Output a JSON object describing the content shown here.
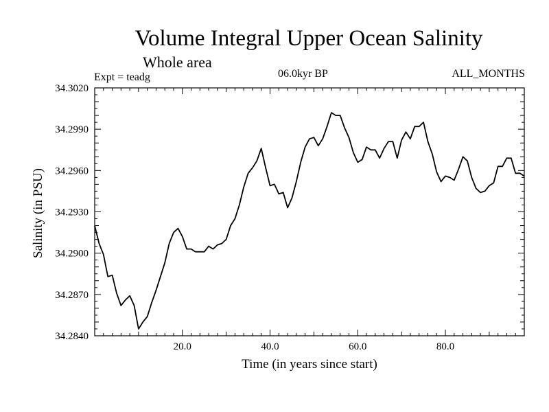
{
  "chart_data": {
    "type": "line",
    "title": "Volume Integral Upper Ocean Salinity",
    "subtitle": "Whole area",
    "experiment_label": "Expt = teadg",
    "period_label": "06.0kyr BP",
    "months_label": "ALL_MONTHS",
    "xlabel": "Time (in years since start)",
    "ylabel": "Salinity (in PSU)",
    "xlim": [
      0,
      98
    ],
    "ylim": [
      34.284,
      34.302
    ],
    "x_ticks": [
      20,
      40,
      60,
      80
    ],
    "x_tick_labels": [
      "20.0",
      "40.0",
      "60.0",
      "80.0"
    ],
    "y_ticks": [
      34.284,
      34.287,
      34.29,
      34.293,
      34.296,
      34.299,
      34.302
    ],
    "y_tick_labels": [
      "34.2840",
      "34.2870",
      "34.2900",
      "34.2930",
      "34.2960",
      "34.2990",
      "34.3020"
    ],
    "series": [
      {
        "name": "salinity",
        "x": [
          0,
          1,
          2,
          3,
          4,
          5,
          6,
          7,
          8,
          9,
          10,
          11,
          12,
          13,
          14,
          15,
          16,
          17,
          18,
          19,
          20,
          21,
          22,
          23,
          24,
          25,
          26,
          27,
          28,
          29,
          30,
          31,
          32,
          33,
          34,
          35,
          36,
          37,
          38,
          39,
          40,
          41,
          42,
          43,
          44,
          45,
          46,
          47,
          48,
          49,
          50,
          51,
          52,
          53,
          54,
          55,
          56,
          57,
          58,
          59,
          60,
          61,
          62,
          63,
          64,
          65,
          66,
          67,
          68,
          69,
          70,
          71,
          72,
          73,
          74,
          75,
          76,
          77,
          78,
          79,
          80,
          81,
          82,
          83,
          84,
          85,
          86,
          87,
          88,
          89,
          90,
          91,
          92,
          93,
          94,
          95,
          96,
          97,
          98
        ],
        "values": [
          34.292,
          34.2907,
          34.2899,
          34.2883,
          34.2884,
          34.2871,
          34.2862,
          34.2866,
          34.2869,
          34.2862,
          34.2845,
          34.285,
          34.2854,
          34.2864,
          34.2873,
          34.2883,
          34.2893,
          34.2907,
          34.2915,
          34.2918,
          34.2912,
          34.2903,
          34.2903,
          34.2901,
          34.2901,
          34.2901,
          34.2905,
          34.2903,
          34.2906,
          34.2907,
          34.291,
          34.292,
          34.2925,
          34.2935,
          34.2948,
          34.2958,
          34.2962,
          34.2967,
          34.2976,
          34.2962,
          34.2949,
          34.295,
          34.2943,
          34.2944,
          34.2933,
          34.294,
          34.2952,
          34.2966,
          34.2977,
          34.2983,
          34.2984,
          34.2978,
          34.2983,
          34.2992,
          34.3002,
          34.3,
          34.3,
          34.2991,
          34.2984,
          34.2973,
          34.2966,
          34.2968,
          34.2977,
          34.2975,
          34.2975,
          34.2969,
          34.2976,
          34.2981,
          34.2981,
          34.2969,
          34.2982,
          34.2988,
          34.2983,
          34.2992,
          34.2992,
          34.2995,
          34.2981,
          34.2972,
          34.2959,
          34.2952,
          34.2956,
          34.2955,
          34.2953,
          34.2961,
          34.297,
          34.2967,
          34.2955,
          34.2947,
          34.2944,
          34.2945,
          34.2949,
          34.2951,
          34.2963,
          34.2963,
          34.2969,
          34.2969,
          34.2958,
          34.2958,
          34.2956
        ]
      }
    ]
  }
}
